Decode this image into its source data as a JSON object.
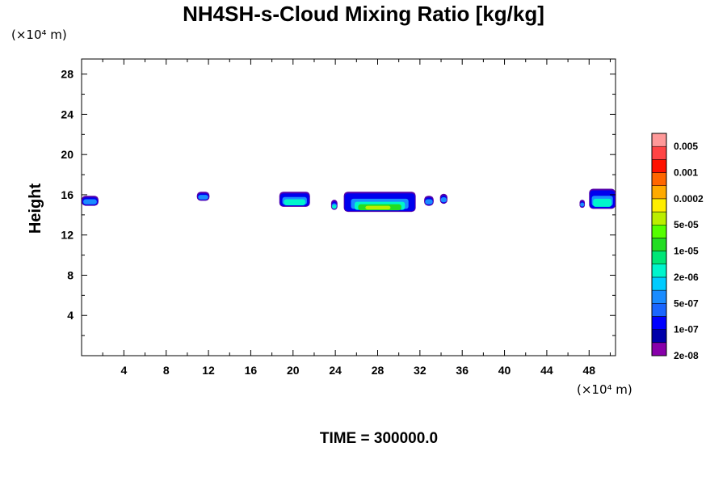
{
  "chart_data": {
    "type": "contour",
    "title": "NH4SH-s-Cloud Mixing Ratio [kg/kg]",
    "xlabel": "",
    "ylabel": "Height",
    "x_unit": "(×10⁴ m)",
    "y_unit": "(×10⁴ m)",
    "xlim": [
      0,
      50.5
    ],
    "ylim": [
      0,
      29.5
    ],
    "x_ticks": [
      4,
      8,
      12,
      16,
      20,
      24,
      28,
      32,
      36,
      40,
      44,
      48
    ],
    "y_ticks": [
      4,
      8,
      12,
      16,
      20,
      24,
      28
    ],
    "grid": false,
    "colorbar": {
      "position": "right",
      "labels": [
        "0.005",
        "0.001",
        "0.0002",
        "5e-05",
        "1e-05",
        "2e-06",
        "5e-07",
        "1e-07",
        "2e-08"
      ],
      "colors": [
        "#8800aa",
        "#0000aa",
        "#0000ff",
        "#1a66ff",
        "#1a8cff",
        "#00ccff",
        "#00f5cc",
        "#00e677",
        "#22dd22",
        "#55ff00",
        "#bbee00",
        "#ffee00",
        "#ffaa00",
        "#ff6600",
        "#ff1100",
        "#ff4444",
        "#ff9999"
      ]
    },
    "clouds": [
      {
        "x0": 0.0,
        "x1": 1.6,
        "ytop": 15.9,
        "ybot": 14.9,
        "core": 0
      },
      {
        "x0": 10.9,
        "x1": 12.1,
        "ytop": 16.3,
        "ybot": 15.4,
        "core": 0
      },
      {
        "x0": 18.7,
        "x1": 21.6,
        "ytop": 16.3,
        "ybot": 14.8,
        "core": 1
      },
      {
        "x0": 23.6,
        "x1": 24.2,
        "ytop": 15.5,
        "ybot": 14.5,
        "core": 1
      },
      {
        "x0": 24.8,
        "x1": 31.6,
        "ytop": 16.3,
        "ybot": 14.3,
        "core": 2
      },
      {
        "x0": 32.4,
        "x1": 33.3,
        "ytop": 15.9,
        "ybot": 14.9,
        "core": 0
      },
      {
        "x0": 33.9,
        "x1": 34.6,
        "ytop": 16.1,
        "ybot": 15.1,
        "core": 0
      },
      {
        "x0": 47.1,
        "x1": 47.6,
        "ytop": 15.5,
        "ybot": 14.7,
        "core": 0
      },
      {
        "x0": 48.0,
        "x1": 50.5,
        "ytop": 16.6,
        "ybot": 14.6,
        "core": 1
      }
    ]
  },
  "time_label": "TIME = 300000.0"
}
